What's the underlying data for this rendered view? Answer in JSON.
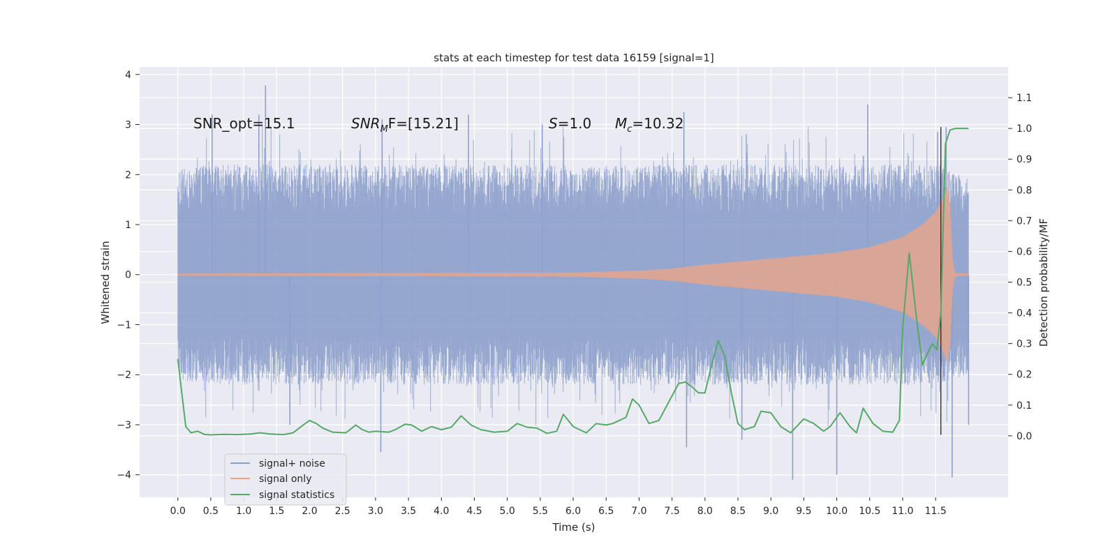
{
  "chart_data": {
    "type": "line",
    "title": "stats at each timestep for test data 16159 [signal=1]",
    "xlabel": "Time (s)",
    "ylabel_left": "Whitened strain",
    "ylabel_right": "Detection probability/MF",
    "xlim": [
      -0.58,
      12.6
    ],
    "ylim_left": [
      -4.45,
      4.15
    ],
    "ylim_right": [
      -0.2,
      1.2
    ],
    "x_ticks": [
      0.0,
      0.5,
      1.0,
      1.5,
      2.0,
      2.5,
      3.0,
      3.5,
      4.0,
      4.5,
      5.0,
      5.5,
      6.0,
      6.5,
      7.0,
      7.5,
      8.0,
      8.5,
      9.0,
      9.5,
      10.0,
      10.5,
      11.0,
      11.5
    ],
    "x_tick_labels": [
      "0.0",
      "0.5",
      "1.0",
      "1.5",
      "2.0",
      "2.5",
      "3.0",
      "3.5",
      "4.0",
      "4.5",
      "5.0",
      "5.5",
      "6.0",
      "6.5",
      "7.0",
      "7.5",
      "8.0",
      "8.5",
      "9.0",
      "9.5",
      "10.0",
      "10.5",
      "11.0",
      "11.5"
    ],
    "y_left_ticks": [
      -4,
      -3,
      -2,
      -1,
      0,
      1,
      2,
      3,
      4
    ],
    "y_left_tick_labels": [
      "−4",
      "−3",
      "−2",
      "−1",
      "0",
      "1",
      "2",
      "3",
      "4"
    ],
    "y_right_ticks": [
      0.0,
      0.1,
      0.2,
      0.3,
      0.4,
      0.5,
      0.6,
      0.7,
      0.8,
      0.9,
      1.0,
      1.1
    ],
    "y_right_tick_labels": [
      "0.0",
      "0.1",
      "0.2",
      "0.3",
      "0.4",
      "0.5",
      "0.6",
      "0.7",
      "0.8",
      "0.9",
      "1.0",
      "1.1"
    ],
    "grid": true,
    "legend_position": "lower-left",
    "annotations": {
      "snr_opt": "SNR_opt=15.1",
      "snr_mf_main": "SNR",
      "snr_mf_sub": "M",
      "snr_mf_rest": "F=[15.21]",
      "s_main": "S",
      "s_rest": "=1.0",
      "mc_main": "M",
      "mc_sub": "c",
      "mc_rest": "=10.32"
    },
    "marker_line": {
      "x": 11.58,
      "y_range": [
        -3.2,
        2.95
      ],
      "color": "#222222"
    },
    "series": [
      {
        "name": "signal+ noise",
        "color": "#8da0cb",
        "axis": "left",
        "t_range": [
          0.0,
          12.0
        ],
        "band_envelope": [
          [
            0.0,
            2.1
          ],
          [
            0.5,
            2.2
          ],
          [
            1.0,
            2.2
          ],
          [
            1.5,
            2.2
          ],
          [
            2.0,
            2.2
          ],
          [
            2.5,
            2.2
          ],
          [
            3.0,
            2.2
          ],
          [
            3.5,
            2.2
          ],
          [
            4.0,
            2.2
          ],
          [
            4.5,
            2.2
          ],
          [
            5.0,
            2.2
          ],
          [
            5.5,
            2.2
          ],
          [
            6.0,
            2.2
          ],
          [
            6.5,
            2.2
          ],
          [
            7.0,
            2.2
          ],
          [
            7.5,
            2.2
          ],
          [
            8.0,
            2.2
          ],
          [
            8.5,
            2.2
          ],
          [
            9.0,
            2.2
          ],
          [
            9.5,
            2.2
          ],
          [
            10.0,
            2.2
          ],
          [
            10.5,
            2.2
          ],
          [
            11.0,
            2.2
          ],
          [
            11.5,
            2.2
          ],
          [
            12.0,
            2.0
          ]
        ],
        "peaks": [
          [
            1.33,
            3.78
          ],
          [
            1.23,
            3.2
          ],
          [
            0.52,
            3.2
          ],
          [
            3.1,
            3.1
          ],
          [
            4.41,
            3.2
          ],
          [
            7.68,
            3.25
          ],
          [
            10.47,
            3.4
          ],
          [
            11.53,
            2.85
          ],
          [
            11.66,
            2.95
          ],
          [
            5.53,
            3.0
          ],
          [
            9.33,
            -4.1
          ],
          [
            10.0,
            -4.0
          ],
          [
            11.75,
            -4.05
          ],
          [
            3.08,
            -3.55
          ],
          [
            7.72,
            -3.45
          ],
          [
            1.7,
            -3.0
          ],
          [
            8.56,
            -3.3
          ],
          [
            12.0,
            -3.0
          ]
        ]
      },
      {
        "name": "signal only",
        "color": "#e5a58c",
        "axis": "left",
        "t_range": [
          0.0,
          12.0
        ],
        "amplitude_envelope": [
          [
            0.0,
            0.02
          ],
          [
            6.0,
            0.04
          ],
          [
            7.0,
            0.08
          ],
          [
            7.5,
            0.12
          ],
          [
            8.0,
            0.2
          ],
          [
            9.0,
            0.32
          ],
          [
            10.0,
            0.44
          ],
          [
            10.5,
            0.55
          ],
          [
            11.0,
            0.75
          ],
          [
            11.3,
            1.0
          ],
          [
            11.5,
            1.25
          ],
          [
            11.6,
            1.5
          ],
          [
            11.68,
            1.75
          ],
          [
            11.72,
            1.4
          ],
          [
            11.76,
            0.3
          ],
          [
            11.8,
            0.03
          ],
          [
            12.0,
            0.02
          ]
        ]
      },
      {
        "name": "signal statistics",
        "color": "#55a868",
        "axis": "right",
        "x": [
          0.0,
          0.12,
          0.2,
          0.3,
          0.4,
          0.5,
          0.7,
          0.9,
          1.1,
          1.25,
          1.4,
          1.6,
          1.75,
          1.9,
          2.0,
          2.1,
          2.2,
          2.35,
          2.55,
          2.7,
          2.8,
          2.9,
          3.0,
          3.2,
          3.3,
          3.45,
          3.55,
          3.7,
          3.85,
          4.0,
          4.15,
          4.3,
          4.45,
          4.6,
          4.8,
          5.0,
          5.15,
          5.3,
          5.45,
          5.6,
          5.75,
          5.85,
          6.0,
          6.2,
          6.35,
          6.5,
          6.6,
          6.8,
          6.9,
          7.0,
          7.15,
          7.3,
          7.45,
          7.6,
          7.7,
          7.8,
          7.9,
          8.0,
          8.1,
          8.2,
          8.3,
          8.4,
          8.5,
          8.6,
          8.75,
          8.85,
          9.0,
          9.15,
          9.3,
          9.5,
          9.65,
          9.8,
          9.9,
          10.05,
          10.2,
          10.3,
          10.4,
          10.55,
          10.7,
          10.85,
          10.95,
          11.0,
          11.1,
          11.2,
          11.3,
          11.38,
          11.45,
          11.52,
          11.58,
          11.65,
          11.72,
          11.8,
          12.0
        ],
        "values": [
          0.25,
          0.03,
          0.01,
          0.015,
          0.005,
          0.003,
          0.005,
          0.004,
          0.006,
          0.01,
          0.006,
          0.004,
          0.01,
          0.035,
          0.05,
          0.04,
          0.025,
          0.012,
          0.01,
          0.035,
          0.02,
          0.012,
          0.015,
          0.012,
          0.02,
          0.038,
          0.035,
          0.015,
          0.03,
          0.02,
          0.028,
          0.065,
          0.035,
          0.02,
          0.012,
          0.015,
          0.04,
          0.028,
          0.025,
          0.008,
          0.015,
          0.07,
          0.03,
          0.01,
          0.04,
          0.035,
          0.04,
          0.06,
          0.12,
          0.1,
          0.04,
          0.05,
          0.11,
          0.17,
          0.175,
          0.16,
          0.14,
          0.14,
          0.23,
          0.31,
          0.26,
          0.14,
          0.04,
          0.02,
          0.03,
          0.08,
          0.075,
          0.03,
          0.01,
          0.055,
          0.04,
          0.015,
          0.03,
          0.075,
          0.03,
          0.01,
          0.09,
          0.04,
          0.015,
          0.012,
          0.05,
          0.35,
          0.595,
          0.4,
          0.23,
          0.27,
          0.3,
          0.28,
          0.4,
          0.95,
          0.995,
          1.0,
          1.0
        ]
      }
    ]
  }
}
